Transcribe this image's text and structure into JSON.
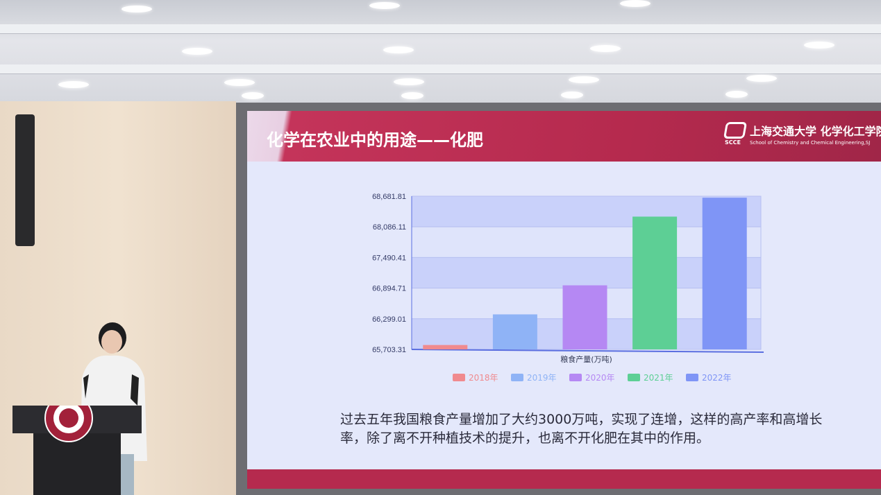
{
  "slide": {
    "title": "化学在农业中的用途——化肥",
    "logo": {
      "abbr": "SCCE",
      "cn": "上海交通大学 化学化工学院",
      "en": "School of Chemistry and Chemical Engineering,SJ"
    },
    "caption": "过去五年我国粮食产量增加了大约3000万吨，实现了连增，这样的高产率和高增长率，除了离不开种植技术的提升，也离不开化肥在其中的作用。"
  },
  "chart_data": {
    "type": "bar",
    "xlabel": "粮食产量(万吨)",
    "categories": [
      "2018年",
      "2019年",
      "2020年",
      "2021年",
      "2022年"
    ],
    "values": [
      65789.2,
      66384.3,
      66949.2,
      68284.7,
      68652.8
    ],
    "colors": [
      "#f08a8e",
      "#8fb3f6",
      "#b588f3",
      "#5dcf95",
      "#7f95f6"
    ],
    "yticks": [
      "65,703.31",
      "66,299.01",
      "66,894.71",
      "67,490.41",
      "68,086.11",
      "68,681.81"
    ],
    "ylim": [
      65703.31,
      68681.81
    ],
    "legend": "bottom",
    "grid": true
  }
}
